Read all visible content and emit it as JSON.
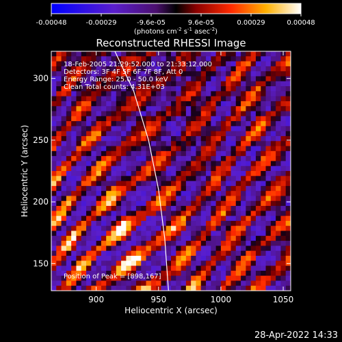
{
  "chart_data": {
    "type": "heatmap",
    "title": "Reconstructed RHESSI Image",
    "xlabel": "Heliocentric X (arcsec)",
    "ylabel": "Heliocentric Y (arcsec)",
    "xlim": [
      864,
      1056
    ],
    "ylim": [
      128,
      322
    ],
    "xticks": [
      900,
      950,
      1000,
      1050
    ],
    "yticks": [
      150,
      200,
      250,
      300
    ],
    "colorbar": {
      "ticks": [
        "-0.00048",
        "-0.00029",
        "-9.6e-05",
        "9.6e-05",
        "0.00029",
        "0.00048"
      ],
      "units_main": "(photons cm",
      "units_sup1": "-2",
      "units_mid": " s",
      "units_sup2": "-1",
      "units_mid2": " asec",
      "units_sup3": "-2",
      "units_end": ")",
      "range": [
        -0.00048,
        0.00048
      ]
    },
    "annotations": {
      "time_range": "18-Feb-2005 21:29:52.000 to 21:33:12.000",
      "detectors": "Detectors: 3F 4F 5F 6F 7F 8F, Att 0",
      "energy_range": "Energy Range: 25.0 - 50.0 keV",
      "clean": "Clean    Total counts: 4.31E+03",
      "peak": "Position of Peak = [898,167]"
    },
    "peak_position": [
      898,
      167
    ],
    "limb": [
      [
        915,
        322
      ],
      [
        930,
        290
      ],
      [
        942,
        250
      ],
      [
        950,
        210
      ],
      [
        955,
        170
      ],
      [
        958,
        128
      ]
    ],
    "pattern": {
      "description_values": "diagonal streak intensity pattern",
      "grid_cols": 48,
      "grid_rows": 48
    }
  },
  "footer": {
    "timestamp": "28-Apr-2022 14:33"
  },
  "colors": {
    "background": "#000000",
    "text": "#ffffff",
    "limb": "#ffffff"
  }
}
